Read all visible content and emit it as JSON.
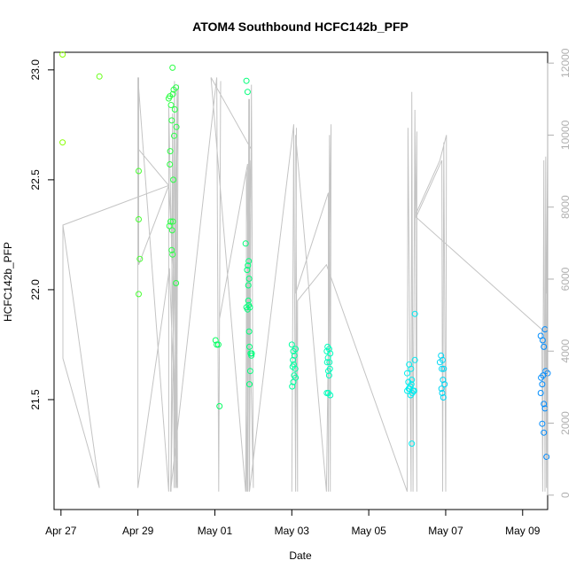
{
  "chart_data": {
    "type": "scatter",
    "title": "ATOM4 Southbound HCFC142b_PFP",
    "xlabel": "Date",
    "ylabel": "HCFC142b_PFP",
    "x_unit": "day of April 2016 (Apr 27 = 27, May 01 = 31)",
    "xlim": [
      26.82,
      39.65
    ],
    "ylim": [
      21.0,
      23.08
    ],
    "x_ticks": [
      {
        "value": 27,
        "label": "Apr 27"
      },
      {
        "value": 29,
        "label": "Apr 29"
      },
      {
        "value": 31,
        "label": "May 01"
      },
      {
        "value": 33,
        "label": "May 03"
      },
      {
        "value": 35,
        "label": "May 05"
      },
      {
        "value": 37,
        "label": "May 07"
      },
      {
        "value": 39,
        "label": "May 09"
      }
    ],
    "y_ticks": [
      {
        "value": 21.5,
        "label": "21.5"
      },
      {
        "value": 22.0,
        "label": "22.0"
      },
      {
        "value": 22.5,
        "label": "22.5"
      },
      {
        "value": 23.0,
        "label": "23.0"
      }
    ],
    "y2_axis": {
      "label": "",
      "ylim": [
        -400,
        12300
      ],
      "ticks": [
        {
          "value": 0,
          "label": "0"
        },
        {
          "value": 2000,
          "label": "2000"
        },
        {
          "value": 4000,
          "label": "4000"
        },
        {
          "value": 6000,
          "label": "6000"
        },
        {
          "value": 8000,
          "label": "8000"
        },
        {
          "value": 10000,
          "label": "10000"
        },
        {
          "value": 12000,
          "label": "12000"
        }
      ]
    },
    "grid": false,
    "legend": "none",
    "colors": {
      "point_scale": [
        "#88ff00",
        "#00ff66",
        "#00ffee",
        "#0088ff"
      ],
      "altitude_line": "#c4c4c4",
      "right_axis": "#b0b0b0"
    },
    "series": [
      {
        "kind": "points",
        "points": [
          [
            27.04,
            23.07
          ],
          [
            27.04,
            22.67
          ],
          [
            28.0,
            22.97
          ],
          [
            29.02,
            22.54
          ],
          [
            29.02,
            22.32
          ],
          [
            29.05,
            22.14
          ],
          [
            29.02,
            21.98
          ],
          [
            29.8,
            22.87
          ],
          [
            29.83,
            22.88
          ],
          [
            29.86,
            22.84
          ],
          [
            29.88,
            22.77
          ],
          [
            29.91,
            22.89
          ],
          [
            29.93,
            22.91
          ],
          [
            29.96,
            22.82
          ],
          [
            29.99,
            22.92
          ],
          [
            29.9,
            23.01
          ],
          [
            29.84,
            22.63
          ],
          [
            29.83,
            22.57
          ],
          [
            29.94,
            22.7
          ],
          [
            30.0,
            22.74
          ],
          [
            29.92,
            22.5
          ],
          [
            29.85,
            22.31
          ],
          [
            29.82,
            22.29
          ],
          [
            29.89,
            22.27
          ],
          [
            29.91,
            22.31
          ],
          [
            29.88,
            22.18
          ],
          [
            29.9,
            22.16
          ],
          [
            29.99,
            22.03
          ],
          [
            31.02,
            21.77
          ],
          [
            31.05,
            21.75
          ],
          [
            31.09,
            21.75
          ],
          [
            31.12,
            21.47
          ],
          [
            31.82,
            22.95
          ],
          [
            31.85,
            22.9
          ],
          [
            31.8,
            22.21
          ],
          [
            31.88,
            22.13
          ],
          [
            31.86,
            22.11
          ],
          [
            31.84,
            22.09
          ],
          [
            31.89,
            22.05
          ],
          [
            31.87,
            22.02
          ],
          [
            31.82,
            21.92
          ],
          [
            31.85,
            21.91
          ],
          [
            31.88,
            21.93
          ],
          [
            31.91,
            21.92
          ],
          [
            31.87,
            21.95
          ],
          [
            31.89,
            21.81
          ],
          [
            31.9,
            21.74
          ],
          [
            31.93,
            21.71
          ],
          [
            31.96,
            21.71
          ],
          [
            31.95,
            21.7
          ],
          [
            31.92,
            21.63
          ],
          [
            31.9,
            21.57
          ],
          [
            33.0,
            21.75
          ],
          [
            33.04,
            21.72
          ],
          [
            33.1,
            21.73
          ],
          [
            33.07,
            21.7
          ],
          [
            33.03,
            21.68
          ],
          [
            33.05,
            21.66
          ],
          [
            33.02,
            21.65
          ],
          [
            33.09,
            21.64
          ],
          [
            33.06,
            21.61
          ],
          [
            33.1,
            21.6
          ],
          [
            33.04,
            21.58
          ],
          [
            33.01,
            21.56
          ],
          [
            33.93,
            21.74
          ],
          [
            33.97,
            21.73
          ],
          [
            33.91,
            21.72
          ],
          [
            34.0,
            21.71
          ],
          [
            33.94,
            21.69
          ],
          [
            33.98,
            21.67
          ],
          [
            33.92,
            21.67
          ],
          [
            33.95,
            21.63
          ],
          [
            33.99,
            21.64
          ],
          [
            33.97,
            21.61
          ],
          [
            33.91,
            21.53
          ],
          [
            33.95,
            21.53
          ],
          [
            34.0,
            21.52
          ],
          [
            36.0,
            21.62
          ],
          [
            36.05,
            21.66
          ],
          [
            36.1,
            21.64
          ],
          [
            36.03,
            21.58
          ],
          [
            36.08,
            21.56
          ],
          [
            36.12,
            21.59
          ],
          [
            36.06,
            21.55
          ],
          [
            36.15,
            21.54
          ],
          [
            36.0,
            21.54
          ],
          [
            36.18,
            21.54
          ],
          [
            36.13,
            21.53
          ],
          [
            36.09,
            21.52
          ],
          [
            36.04,
            21.55
          ],
          [
            36.11,
            21.57
          ],
          [
            36.2,
            21.68
          ],
          [
            36.2,
            21.89
          ],
          [
            36.12,
            21.3
          ],
          [
            36.88,
            21.7
          ],
          [
            36.85,
            21.67
          ],
          [
            36.92,
            21.68
          ],
          [
            36.9,
            21.64
          ],
          [
            36.95,
            21.64
          ],
          [
            36.93,
            21.59
          ],
          [
            36.97,
            21.57
          ],
          [
            36.89,
            21.55
          ],
          [
            36.91,
            21.53
          ],
          [
            36.94,
            21.51
          ],
          [
            39.47,
            21.79
          ],
          [
            39.52,
            21.77
          ],
          [
            39.55,
            21.74
          ],
          [
            39.58,
            21.82
          ],
          [
            39.6,
            21.63
          ],
          [
            39.53,
            21.61
          ],
          [
            39.48,
            21.6
          ],
          [
            39.51,
            21.57
          ],
          [
            39.47,
            21.53
          ],
          [
            39.55,
            21.48
          ],
          [
            39.58,
            21.46
          ],
          [
            39.51,
            21.39
          ],
          [
            39.55,
            21.35
          ],
          [
            39.65,
            21.62
          ],
          [
            39.62,
            21.24
          ]
        ]
      },
      {
        "kind": "altitude-line",
        "axis": "right",
        "points": [
          [
            27.05,
            7500
          ],
          [
            27.05,
            3800
          ],
          [
            28.0,
            200
          ],
          [
            27.05,
            7500
          ],
          [
            29.8,
            8600
          ],
          [
            29.02,
            9600
          ],
          [
            29.02,
            11600
          ],
          [
            29.02,
            6400
          ],
          [
            29.8,
            8600
          ],
          [
            29.92,
            6300
          ],
          [
            29.95,
            11500
          ],
          [
            29.98,
            200
          ],
          [
            30.02,
            11300
          ],
          [
            29.86,
            100
          ],
          [
            29.9,
            10600
          ],
          [
            29.94,
            200
          ],
          [
            30.0,
            8100
          ],
          [
            30.03,
            200
          ],
          [
            29.82,
            6300
          ],
          [
            29.0,
            200
          ],
          [
            29.0,
            11600
          ],
          [
            29.8,
            100
          ],
          [
            29.8,
            10800
          ],
          [
            30.0,
            200
          ],
          [
            30.05,
            11400
          ],
          [
            29.85,
            100
          ],
          [
            31.05,
            11600
          ],
          [
            31.1,
            100
          ],
          [
            31.15,
            11500
          ],
          [
            31.12,
            4900
          ],
          [
            31.85,
            9200
          ],
          [
            31.85,
            100
          ],
          [
            31.9,
            11000
          ],
          [
            31.9,
            100
          ],
          [
            31.95,
            11400
          ],
          [
            32.0,
            200
          ],
          [
            31.82,
            9000
          ],
          [
            31.82,
            100
          ],
          [
            31.95,
            9600
          ],
          [
            30.9,
            11600
          ],
          [
            31.8,
            100
          ],
          [
            31.82,
            5300
          ],
          [
            31.92,
            4100
          ],
          [
            31.93,
            9300
          ],
          [
            31.84,
            5700
          ],
          [
            31.86,
            100
          ],
          [
            31.88,
            11000
          ],
          [
            31.9,
            100
          ],
          [
            33.05,
            10300
          ],
          [
            33.0,
            100
          ],
          [
            33.05,
            10100
          ],
          [
            33.1,
            100
          ],
          [
            33.12,
            10200
          ],
          [
            33.1,
            5600
          ],
          [
            33.95,
            8400
          ],
          [
            33.95,
            100
          ],
          [
            33.98,
            10000
          ],
          [
            34.0,
            100
          ],
          [
            34.02,
            10300
          ],
          [
            33.9,
            100
          ],
          [
            33.1,
            10000
          ],
          [
            33.15,
            100
          ],
          [
            33.15,
            5400
          ],
          [
            33.9,
            6400
          ],
          [
            36.0,
            100
          ],
          [
            36.02,
            10200
          ],
          [
            36.1,
            100
          ],
          [
            36.12,
            11200
          ],
          [
            36.15,
            100
          ],
          [
            36.2,
            10700
          ],
          [
            36.25,
            100
          ],
          [
            36.25,
            10100
          ],
          [
            36.22,
            7700
          ],
          [
            36.9,
            9300
          ],
          [
            36.92,
            100
          ],
          [
            36.95,
            9800
          ],
          [
            37.0,
            100
          ],
          [
            37.02,
            10000
          ],
          [
            36.85,
            9300
          ],
          [
            36.22,
            7800
          ],
          [
            36.25,
            7700
          ],
          [
            39.5,
            4600
          ],
          [
            39.52,
            100
          ],
          [
            39.55,
            9300
          ],
          [
            39.58,
            100
          ],
          [
            39.6,
            9400
          ],
          [
            39.62,
            200
          ],
          [
            39.65,
            9600
          ],
          [
            39.62,
            5600
          ]
        ]
      }
    ]
  }
}
